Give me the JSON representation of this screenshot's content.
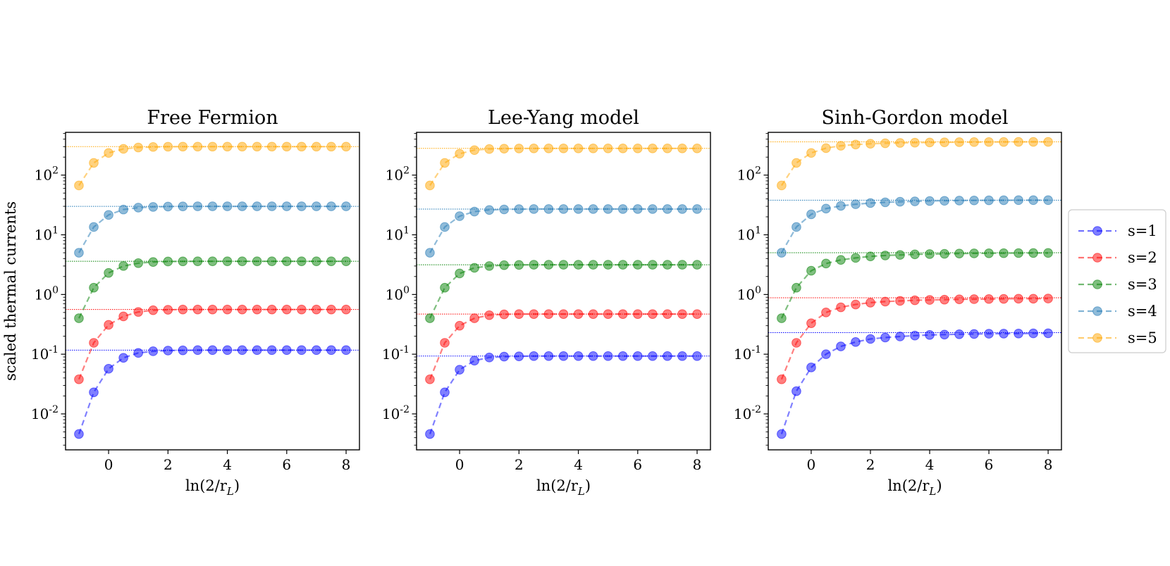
{
  "chart_data": [
    {
      "type": "line",
      "title": "Free Fermion",
      "xlabel": "ln(2/r_L)",
      "ylabel": "scaled thermal currents",
      "yscale": "log",
      "xlim": [
        -1.45,
        8.45
      ],
      "ylim": [
        0.0025,
        520
      ],
      "xticks": [
        0,
        2,
        4,
        6,
        8
      ],
      "yticks": [
        0.01,
        0.1,
        1,
        10,
        100
      ],
      "x": [
        -1.0,
        -0.5,
        0.0,
        0.5,
        1.0,
        1.5,
        2.0,
        2.5,
        3.0,
        3.5,
        4.0,
        4.5,
        5.0,
        5.5,
        6.0,
        6.5,
        7.0,
        7.5,
        8.0
      ],
      "series": [
        {
          "name": "s=1",
          "color": "#0000ff",
          "asymptote": 0.117,
          "values": [
            0.0046,
            0.023,
            0.057,
            0.087,
            0.105,
            0.112,
            0.115,
            0.116,
            0.117,
            0.117,
            0.117,
            0.117,
            0.117,
            0.117,
            0.117,
            0.117,
            0.117,
            0.117,
            0.117
          ]
        },
        {
          "name": "s=2",
          "color": "#ff0000",
          "asymptote": 0.56,
          "values": [
            0.038,
            0.155,
            0.31,
            0.43,
            0.51,
            0.545,
            0.555,
            0.56,
            0.56,
            0.56,
            0.56,
            0.56,
            0.56,
            0.56,
            0.56,
            0.56,
            0.56,
            0.56,
            0.56
          ]
        },
        {
          "name": "s=3",
          "color": "#008000",
          "asymptote": 3.6,
          "values": [
            0.4,
            1.3,
            2.3,
            3.0,
            3.35,
            3.5,
            3.57,
            3.59,
            3.6,
            3.6,
            3.6,
            3.6,
            3.6,
            3.6,
            3.6,
            3.6,
            3.6,
            3.6,
            3.6
          ]
        },
        {
          "name": "s=4",
          "color": "#1f77b4",
          "asymptote": 30,
          "values": [
            5.0,
            13.5,
            21.5,
            26.5,
            28.5,
            29.3,
            29.7,
            29.9,
            30,
            30,
            30,
            30,
            30,
            30,
            30,
            30,
            30,
            30,
            30
          ]
        },
        {
          "name": "s=5",
          "color": "#ffa500",
          "asymptote": 300,
          "values": [
            67,
            160,
            235,
            275,
            290,
            296,
            299,
            300,
            300,
            300,
            300,
            300,
            300,
            300,
            300,
            300,
            300,
            300,
            300
          ]
        }
      ]
    },
    {
      "type": "line",
      "title": "Lee-Yang model",
      "xlabel": "ln(2/r_L)",
      "ylabel": "",
      "yscale": "log",
      "xlim": [
        -1.45,
        8.45
      ],
      "ylim": [
        0.0025,
        520
      ],
      "xticks": [
        0,
        2,
        4,
        6,
        8
      ],
      "yticks": [
        0.01,
        0.1,
        1,
        10,
        100
      ],
      "x": [
        -1.0,
        -0.5,
        0.0,
        0.5,
        1.0,
        1.5,
        2.0,
        2.5,
        3.0,
        3.5,
        4.0,
        4.5,
        5.0,
        5.5,
        6.0,
        6.5,
        7.0,
        7.5,
        8.0
      ],
      "series": [
        {
          "name": "s=1",
          "color": "#0000ff",
          "asymptote": 0.093,
          "values": [
            0.0046,
            0.023,
            0.055,
            0.078,
            0.088,
            0.091,
            0.092,
            0.093,
            0.093,
            0.093,
            0.093,
            0.093,
            0.093,
            0.093,
            0.093,
            0.093,
            0.093,
            0.093,
            0.093
          ]
        },
        {
          "name": "s=2",
          "color": "#ff0000",
          "asymptote": 0.47,
          "values": [
            0.038,
            0.155,
            0.3,
            0.4,
            0.45,
            0.465,
            0.47,
            0.47,
            0.47,
            0.47,
            0.47,
            0.47,
            0.47,
            0.47,
            0.47,
            0.47,
            0.47,
            0.47,
            0.47
          ]
        },
        {
          "name": "s=3",
          "color": "#008000",
          "asymptote": 3.15,
          "values": [
            0.4,
            1.3,
            2.25,
            2.8,
            3.0,
            3.1,
            3.13,
            3.15,
            3.15,
            3.15,
            3.15,
            3.15,
            3.15,
            3.15,
            3.15,
            3.15,
            3.15,
            3.15,
            3.15
          ]
        },
        {
          "name": "s=4",
          "color": "#1f77b4",
          "asymptote": 27,
          "values": [
            5.0,
            13.5,
            20.5,
            24.5,
            26.0,
            26.6,
            26.9,
            27,
            27,
            27,
            27,
            27,
            27,
            27,
            27,
            27,
            27,
            27,
            27
          ]
        },
        {
          "name": "s=5",
          "color": "#ffa500",
          "asymptote": 280,
          "values": [
            67,
            160,
            228,
            262,
            273,
            277,
            279,
            280,
            280,
            280,
            280,
            280,
            280,
            280,
            280,
            280,
            280,
            280,
            280
          ]
        }
      ]
    },
    {
      "type": "line",
      "title": "Sinh-Gordon model",
      "xlabel": "ln(2/r_L)",
      "ylabel": "",
      "yscale": "log",
      "xlim": [
        -1.45,
        8.45
      ],
      "ylim": [
        0.0025,
        520
      ],
      "xticks": [
        0,
        2,
        4,
        6,
        8
      ],
      "yticks": [
        0.01,
        0.1,
        1,
        10,
        100
      ],
      "x": [
        -1.0,
        -0.5,
        0.0,
        0.5,
        1.0,
        1.5,
        2.0,
        2.5,
        3.0,
        3.5,
        4.0,
        4.5,
        5.0,
        5.5,
        6.0,
        6.5,
        7.0,
        7.5,
        8.0
      ],
      "series": [
        {
          "name": "s=1",
          "color": "#0000ff",
          "asymptote": 0.23,
          "values": [
            0.0046,
            0.024,
            0.06,
            0.1,
            0.135,
            0.16,
            0.18,
            0.19,
            0.198,
            0.205,
            0.21,
            0.213,
            0.216,
            0.218,
            0.22,
            0.221,
            0.222,
            0.223,
            0.224
          ]
        },
        {
          "name": "s=2",
          "color": "#ff0000",
          "asymptote": 0.88,
          "values": [
            0.038,
            0.155,
            0.33,
            0.5,
            0.61,
            0.68,
            0.73,
            0.76,
            0.78,
            0.8,
            0.81,
            0.82,
            0.83,
            0.835,
            0.84,
            0.845,
            0.85,
            0.85,
            0.855
          ]
        },
        {
          "name": "s=3",
          "color": "#008000",
          "asymptote": 5.0,
          "values": [
            0.4,
            1.3,
            2.5,
            3.3,
            3.8,
            4.1,
            4.35,
            4.5,
            4.6,
            4.7,
            4.75,
            4.8,
            4.85,
            4.88,
            4.9,
            4.92,
            4.94,
            4.95,
            4.96
          ]
        },
        {
          "name": "s=4",
          "color": "#1f77b4",
          "asymptote": 38,
          "values": [
            5.0,
            13.5,
            22,
            27.5,
            30.5,
            32.5,
            34,
            35,
            35.8,
            36.3,
            36.8,
            37.1,
            37.4,
            37.6,
            37.8,
            37.9,
            38,
            38,
            38
          ]
        },
        {
          "name": "s=5",
          "color": "#ffa500",
          "asymptote": 360,
          "values": [
            67,
            160,
            235,
            283,
            310,
            325,
            335,
            341,
            346,
            349,
            352,
            354,
            356,
            357,
            358,
            359,
            360,
            360,
            360
          ]
        }
      ]
    }
  ],
  "legend": {
    "position": "right",
    "entries": [
      "s=1",
      "s=2",
      "s=3",
      "s=4",
      "s=5"
    ],
    "colors": [
      "#0000ff",
      "#ff0000",
      "#008000",
      "#1f77b4",
      "#ffa500"
    ]
  }
}
